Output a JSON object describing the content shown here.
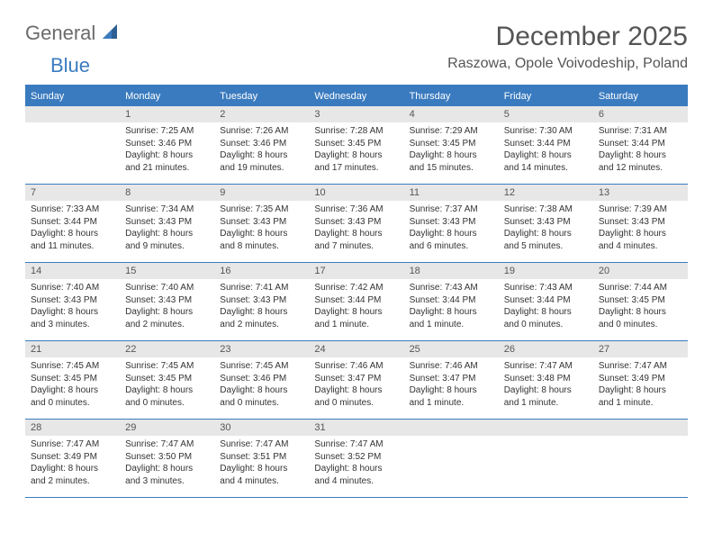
{
  "logo": {
    "general": "General",
    "blue": "Blue"
  },
  "title": "December 2025",
  "location": "Raszowa, Opole Voivodeship, Poland",
  "weekdays": [
    "Sunday",
    "Monday",
    "Tuesday",
    "Wednesday",
    "Thursday",
    "Friday",
    "Saturday"
  ],
  "colors": {
    "accent": "#3a7bbf",
    "header_bg": "#3a7bbf",
    "header_text": "#ffffff",
    "daynum_bg": "#e7e7e7",
    "body_text": "#333333",
    "title_text": "#555555"
  },
  "weeks": [
    [
      {
        "day": "",
        "sunrise": "",
        "sunset": "",
        "daylight": ""
      },
      {
        "day": "1",
        "sunrise": "Sunrise: 7:25 AM",
        "sunset": "Sunset: 3:46 PM",
        "daylight": "Daylight: 8 hours and 21 minutes."
      },
      {
        "day": "2",
        "sunrise": "Sunrise: 7:26 AM",
        "sunset": "Sunset: 3:46 PM",
        "daylight": "Daylight: 8 hours and 19 minutes."
      },
      {
        "day": "3",
        "sunrise": "Sunrise: 7:28 AM",
        "sunset": "Sunset: 3:45 PM",
        "daylight": "Daylight: 8 hours and 17 minutes."
      },
      {
        "day": "4",
        "sunrise": "Sunrise: 7:29 AM",
        "sunset": "Sunset: 3:45 PM",
        "daylight": "Daylight: 8 hours and 15 minutes."
      },
      {
        "day": "5",
        "sunrise": "Sunrise: 7:30 AM",
        "sunset": "Sunset: 3:44 PM",
        "daylight": "Daylight: 8 hours and 14 minutes."
      },
      {
        "day": "6",
        "sunrise": "Sunrise: 7:31 AM",
        "sunset": "Sunset: 3:44 PM",
        "daylight": "Daylight: 8 hours and 12 minutes."
      }
    ],
    [
      {
        "day": "7",
        "sunrise": "Sunrise: 7:33 AM",
        "sunset": "Sunset: 3:44 PM",
        "daylight": "Daylight: 8 hours and 11 minutes."
      },
      {
        "day": "8",
        "sunrise": "Sunrise: 7:34 AM",
        "sunset": "Sunset: 3:43 PM",
        "daylight": "Daylight: 8 hours and 9 minutes."
      },
      {
        "day": "9",
        "sunrise": "Sunrise: 7:35 AM",
        "sunset": "Sunset: 3:43 PM",
        "daylight": "Daylight: 8 hours and 8 minutes."
      },
      {
        "day": "10",
        "sunrise": "Sunrise: 7:36 AM",
        "sunset": "Sunset: 3:43 PM",
        "daylight": "Daylight: 8 hours and 7 minutes."
      },
      {
        "day": "11",
        "sunrise": "Sunrise: 7:37 AM",
        "sunset": "Sunset: 3:43 PM",
        "daylight": "Daylight: 8 hours and 6 minutes."
      },
      {
        "day": "12",
        "sunrise": "Sunrise: 7:38 AM",
        "sunset": "Sunset: 3:43 PM",
        "daylight": "Daylight: 8 hours and 5 minutes."
      },
      {
        "day": "13",
        "sunrise": "Sunrise: 7:39 AM",
        "sunset": "Sunset: 3:43 PM",
        "daylight": "Daylight: 8 hours and 4 minutes."
      }
    ],
    [
      {
        "day": "14",
        "sunrise": "Sunrise: 7:40 AM",
        "sunset": "Sunset: 3:43 PM",
        "daylight": "Daylight: 8 hours and 3 minutes."
      },
      {
        "day": "15",
        "sunrise": "Sunrise: 7:40 AM",
        "sunset": "Sunset: 3:43 PM",
        "daylight": "Daylight: 8 hours and 2 minutes."
      },
      {
        "day": "16",
        "sunrise": "Sunrise: 7:41 AM",
        "sunset": "Sunset: 3:43 PM",
        "daylight": "Daylight: 8 hours and 2 minutes."
      },
      {
        "day": "17",
        "sunrise": "Sunrise: 7:42 AM",
        "sunset": "Sunset: 3:44 PM",
        "daylight": "Daylight: 8 hours and 1 minute."
      },
      {
        "day": "18",
        "sunrise": "Sunrise: 7:43 AM",
        "sunset": "Sunset: 3:44 PM",
        "daylight": "Daylight: 8 hours and 1 minute."
      },
      {
        "day": "19",
        "sunrise": "Sunrise: 7:43 AM",
        "sunset": "Sunset: 3:44 PM",
        "daylight": "Daylight: 8 hours and 0 minutes."
      },
      {
        "day": "20",
        "sunrise": "Sunrise: 7:44 AM",
        "sunset": "Sunset: 3:45 PM",
        "daylight": "Daylight: 8 hours and 0 minutes."
      }
    ],
    [
      {
        "day": "21",
        "sunrise": "Sunrise: 7:45 AM",
        "sunset": "Sunset: 3:45 PM",
        "daylight": "Daylight: 8 hours and 0 minutes."
      },
      {
        "day": "22",
        "sunrise": "Sunrise: 7:45 AM",
        "sunset": "Sunset: 3:45 PM",
        "daylight": "Daylight: 8 hours and 0 minutes."
      },
      {
        "day": "23",
        "sunrise": "Sunrise: 7:45 AM",
        "sunset": "Sunset: 3:46 PM",
        "daylight": "Daylight: 8 hours and 0 minutes."
      },
      {
        "day": "24",
        "sunrise": "Sunrise: 7:46 AM",
        "sunset": "Sunset: 3:47 PM",
        "daylight": "Daylight: 8 hours and 0 minutes."
      },
      {
        "day": "25",
        "sunrise": "Sunrise: 7:46 AM",
        "sunset": "Sunset: 3:47 PM",
        "daylight": "Daylight: 8 hours and 1 minute."
      },
      {
        "day": "26",
        "sunrise": "Sunrise: 7:47 AM",
        "sunset": "Sunset: 3:48 PM",
        "daylight": "Daylight: 8 hours and 1 minute."
      },
      {
        "day": "27",
        "sunrise": "Sunrise: 7:47 AM",
        "sunset": "Sunset: 3:49 PM",
        "daylight": "Daylight: 8 hours and 1 minute."
      }
    ],
    [
      {
        "day": "28",
        "sunrise": "Sunrise: 7:47 AM",
        "sunset": "Sunset: 3:49 PM",
        "daylight": "Daylight: 8 hours and 2 minutes."
      },
      {
        "day": "29",
        "sunrise": "Sunrise: 7:47 AM",
        "sunset": "Sunset: 3:50 PM",
        "daylight": "Daylight: 8 hours and 3 minutes."
      },
      {
        "day": "30",
        "sunrise": "Sunrise: 7:47 AM",
        "sunset": "Sunset: 3:51 PM",
        "daylight": "Daylight: 8 hours and 4 minutes."
      },
      {
        "day": "31",
        "sunrise": "Sunrise: 7:47 AM",
        "sunset": "Sunset: 3:52 PM",
        "daylight": "Daylight: 8 hours and 4 minutes."
      },
      {
        "day": "",
        "sunrise": "",
        "sunset": "",
        "daylight": ""
      },
      {
        "day": "",
        "sunrise": "",
        "sunset": "",
        "daylight": ""
      },
      {
        "day": "",
        "sunrise": "",
        "sunset": "",
        "daylight": ""
      }
    ]
  ]
}
